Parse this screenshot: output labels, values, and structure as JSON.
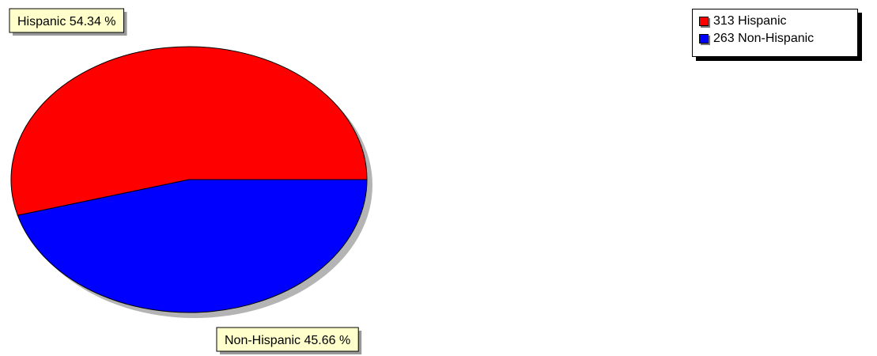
{
  "chart_data": {
    "type": "pie",
    "categories": [
      "Hispanic",
      "Non-Hispanic"
    ],
    "values": [
      313,
      263
    ],
    "percent_labels": [
      "Hispanic 54.34 %",
      "Non-Hispanic 45.66 %"
    ],
    "colors": [
      "#ff0000",
      "#0000ff"
    ],
    "legend_position": "top-right"
  },
  "legend": {
    "items": [
      {
        "label": "313 Hispanic",
        "color": "#ff0000"
      },
      {
        "label": "263 Non-Hispanic",
        "color": "#0000ff"
      }
    ]
  }
}
